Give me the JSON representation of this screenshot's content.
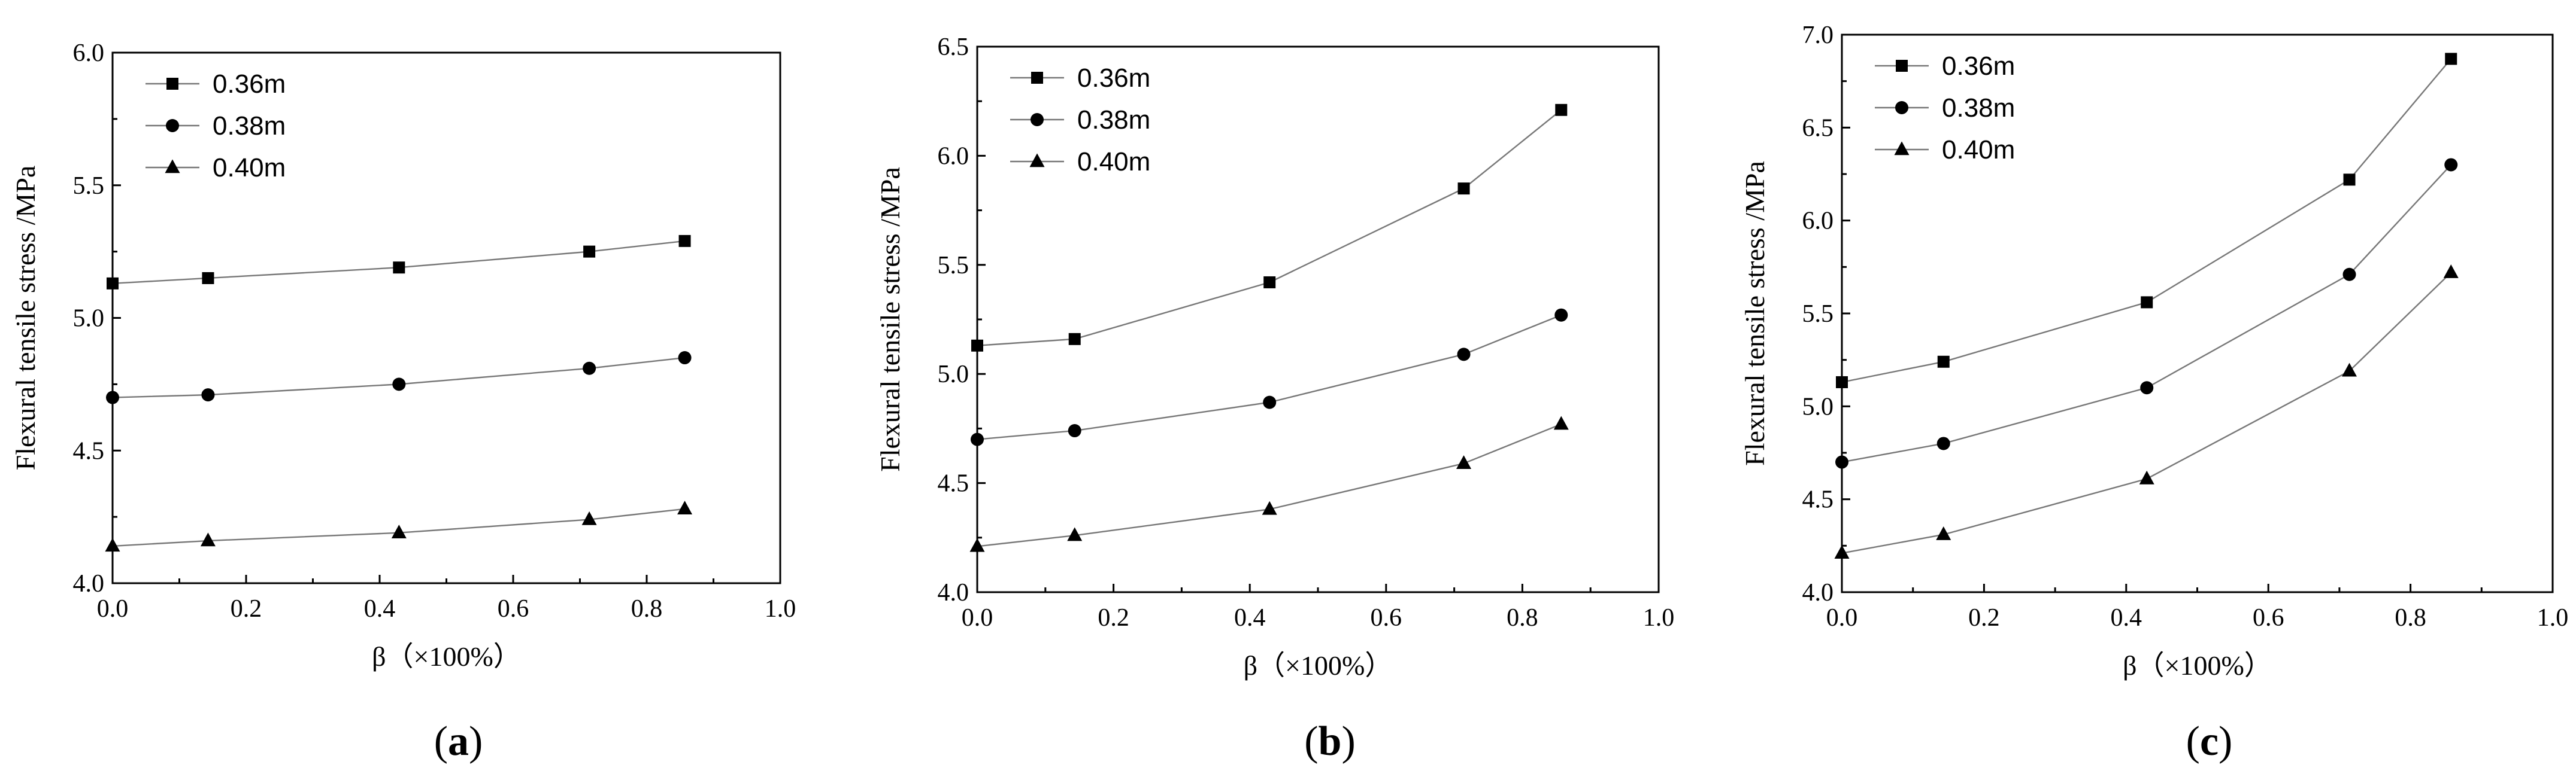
{
  "chart_data": [
    {
      "type": "line",
      "panel_label": "a",
      "xlabel": "β（×100%）",
      "ylabel": "Flexural tensile stress /MPa",
      "xlim": [
        0.0,
        1.0
      ],
      "ylim": [
        4.0,
        6.0
      ],
      "x_ticks": [
        "0.0",
        "0.2",
        "0.4",
        "0.6",
        "0.8",
        "1.0"
      ],
      "y_ticks": [
        "4.0",
        "4.5",
        "5.0",
        "5.5",
        "6.0"
      ],
      "x": [
        0.0,
        0.143,
        0.429,
        0.714,
        0.857
      ],
      "series": [
        {
          "name": "0.36m",
          "marker": "square",
          "values": [
            5.13,
            5.15,
            5.19,
            5.25,
            5.29
          ]
        },
        {
          "name": "0.38m",
          "marker": "circle",
          "values": [
            4.7,
            4.71,
            4.75,
            4.81,
            4.85
          ]
        },
        {
          "name": "0.40m",
          "marker": "triangle",
          "values": [
            4.14,
            4.16,
            4.19,
            4.24,
            4.28
          ]
        }
      ]
    },
    {
      "type": "line",
      "panel_label": "b",
      "xlabel": "β（×100%）",
      "ylabel": "Flexural tensile stress /MPa",
      "xlim": [
        0.0,
        1.0
      ],
      "ylim": [
        4.0,
        6.5
      ],
      "x_ticks": [
        "0.0",
        "0.2",
        "0.4",
        "0.6",
        "0.8",
        "1.0"
      ],
      "y_ticks": [
        "4.0",
        "4.5",
        "5.0",
        "5.5",
        "6.0",
        "6.5"
      ],
      "x": [
        0.0,
        0.143,
        0.429,
        0.714,
        0.857
      ],
      "series": [
        {
          "name": "0.36m",
          "marker": "square",
          "values": [
            5.13,
            5.16,
            5.42,
            5.85,
            6.21
          ]
        },
        {
          "name": "0.38m",
          "marker": "circle",
          "values": [
            4.7,
            4.74,
            4.87,
            5.09,
            5.27
          ]
        },
        {
          "name": "0.40m",
          "marker": "triangle",
          "values": [
            4.21,
            4.26,
            4.38,
            4.59,
            4.77
          ]
        }
      ]
    },
    {
      "type": "line",
      "panel_label": "c",
      "xlabel": "β（×100%）",
      "ylabel": "Flexural tensile stress /MPa",
      "xlim": [
        0.0,
        1.0
      ],
      "ylim": [
        4.0,
        7.0
      ],
      "x_ticks": [
        "0.0",
        "0.2",
        "0.4",
        "0.6",
        "0.8",
        "1.0"
      ],
      "y_ticks": [
        "4.0",
        "4.5",
        "5.0",
        "5.5",
        "6.0",
        "6.5",
        "7.0"
      ],
      "x": [
        0.0,
        0.143,
        0.429,
        0.714,
        0.857
      ],
      "series": [
        {
          "name": "0.36m",
          "marker": "square",
          "values": [
            5.13,
            5.24,
            5.56,
            6.22,
            6.87
          ]
        },
        {
          "name": "0.38m",
          "marker": "circle",
          "values": [
            4.7,
            4.8,
            5.1,
            5.71,
            6.3
          ]
        },
        {
          "name": "0.40m",
          "marker": "triangle",
          "values": [
            4.21,
            4.31,
            4.61,
            5.19,
            5.72
          ]
        }
      ]
    }
  ]
}
